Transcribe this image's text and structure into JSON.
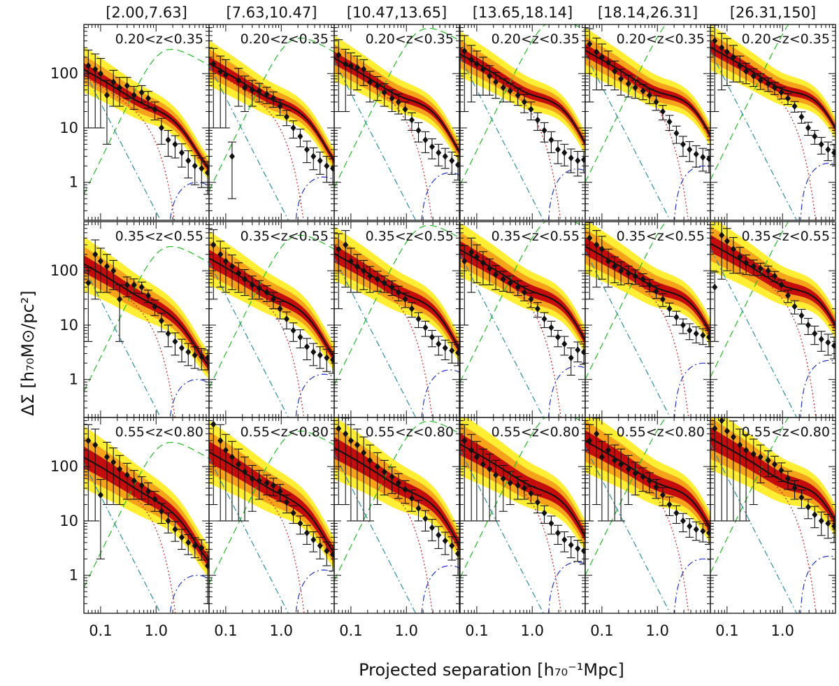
{
  "chart_data": {
    "type": "scatter",
    "figure_ylabel": "ΔΣ  [h₇₀M⊙/pc²]",
    "figure_xlabel": "Projected separation  [h₇₀⁻¹Mpc]",
    "column_labels": [
      "[2.00,7.63]",
      "[7.63,10.47]",
      "[10.47,13.65]",
      "[13.65,18.14]",
      "[18.14,26.31]",
      "[26.31,150]"
    ],
    "row_labels": [
      "0.20<z<0.35",
      "0.35<z<0.55",
      "0.55<z<0.80"
    ],
    "x_scale": "log",
    "y_scale": "log",
    "xlim": [
      0.05,
      9
    ],
    "ylim": [
      0.2,
      800
    ],
    "x_ticks": [
      0.1,
      1.0
    ],
    "x_tick_labels": [
      "0.1",
      "1.0"
    ],
    "y_ticks": [
      1,
      10,
      100
    ],
    "y_tick_labels": [
      "1",
      "10",
      "100"
    ],
    "x": [
      0.06,
      0.08,
      0.1,
      0.13,
      0.17,
      0.22,
      0.3,
      0.4,
      0.55,
      0.72,
      0.95,
      1.25,
      1.65,
      2.2,
      2.9,
      3.8,
      5.0,
      6.6,
      8.5
    ],
    "model_curves": [
      {
        "name": "total",
        "style": "solid black with red/orange/yellow confidence bands"
      },
      {
        "name": "1-halo",
        "style": "red dotted"
      },
      {
        "name": "2-halo",
        "style": "green dashed"
      },
      {
        "name": "stellar",
        "style": "teal dash-dot"
      },
      {
        "name": "miscentering",
        "style": "blue dash-dot"
      }
    ],
    "panels": [
      {
        "row": 0,
        "col": 0,
        "y": [
          140,
          120,
          100,
          40,
          70,
          55,
          60,
          40,
          45,
          35,
          22,
          10,
          6,
          5,
          3.5,
          2.5,
          2,
          1.8,
          1.5
        ],
        "err": [
          130,
          110,
          90,
          35,
          45,
          30,
          25,
          18,
          15,
          12,
          8,
          5,
          3,
          2.2,
          1.6,
          1.3,
          1.1,
          1.0,
          0.9
        ]
      },
      {
        "row": 0,
        "col": 1,
        "y": [
          150,
          110,
          95,
          3,
          75,
          55,
          50,
          48,
          42,
          35,
          25,
          16,
          10,
          7,
          4,
          3,
          2.5,
          2,
          1.8
        ],
        "err": [
          140,
          100,
          85,
          2.5,
          50,
          35,
          25,
          18,
          14,
          11,
          8,
          5,
          3.5,
          2.5,
          1.7,
          1.3,
          1.1,
          1.0,
          0.9
        ]
      },
      {
        "row": 0,
        "col": 2,
        "y": [
          220,
          150,
          140,
          130,
          120,
          70,
          60,
          45,
          35,
          30,
          22,
          14,
          9,
          6,
          4.5,
          3.5,
          3,
          2.5,
          2.1
        ],
        "err": [
          200,
          130,
          100,
          80,
          60,
          40,
          28,
          20,
          15,
          12,
          8,
          5,
          3.5,
          2.5,
          1.8,
          1.5,
          1.2,
          1.1,
          1.0
        ]
      },
      {
        "row": 0,
        "col": 3,
        "y": [
          260,
          180,
          150,
          120,
          90,
          70,
          55,
          48,
          40,
          30,
          22,
          14,
          9,
          6,
          4,
          3.5,
          2.8,
          2.5,
          2.6
        ],
        "err": [
          240,
          150,
          110,
          80,
          50,
          35,
          25,
          18,
          14,
          11,
          8,
          5,
          3.5,
          2.5,
          1.8,
          1.5,
          1.3,
          1.2,
          1.1
        ]
      },
      {
        "row": 0,
        "col": 4,
        "y": [
          350,
          250,
          200,
          160,
          110,
          80,
          65,
          55,
          48,
          40,
          30,
          20,
          13,
          8,
          5,
          4,
          3.3,
          2.9,
          2.7
        ],
        "err": [
          320,
          200,
          150,
          100,
          60,
          40,
          28,
          20,
          15,
          12,
          9,
          6,
          4,
          2.8,
          2,
          1.6,
          1.4,
          1.3,
          1.2
        ]
      },
      {
        "row": 0,
        "col": 5,
        "y": [
          400,
          300,
          250,
          200,
          140,
          110,
          90,
          75,
          65,
          55,
          45,
          35,
          25,
          16,
          10,
          7,
          5,
          4,
          3.5
        ],
        "err": [
          380,
          250,
          190,
          130,
          70,
          45,
          32,
          24,
          18,
          14,
          11,
          8,
          5.5,
          3.8,
          2.7,
          2,
          1.7,
          1.5,
          1.4
        ]
      },
      {
        "row": 1,
        "col": 0,
        "y": [
          60,
          200,
          150,
          120,
          100,
          30,
          55,
          55,
          50,
          35,
          22,
          12,
          7,
          5,
          3.8,
          3.2,
          2.8,
          2.6,
          2.5
        ],
        "err": [
          55,
          170,
          110,
          80,
          55,
          25,
          22,
          16,
          12,
          9,
          7,
          4.5,
          3,
          2.2,
          1.7,
          1.4,
          1.2,
          1.1,
          1.0
        ]
      },
      {
        "row": 1,
        "col": 1,
        "y": [
          300,
          200,
          150,
          120,
          90,
          70,
          55,
          48,
          40,
          30,
          20,
          13,
          8,
          6,
          4,
          3.2,
          2.8,
          2.5,
          2.3
        ],
        "err": [
          270,
          150,
          110,
          75,
          50,
          35,
          25,
          18,
          13,
          10,
          7,
          4.5,
          3,
          2.2,
          1.7,
          1.4,
          1.2,
          1.1,
          1.0
        ]
      },
      {
        "row": 1,
        "col": 2,
        "y": [
          250,
          300,
          150,
          120,
          100,
          80,
          70,
          60,
          50,
          40,
          30,
          20,
          13,
          9,
          6,
          4.5,
          3.8,
          3.4,
          3.1
        ],
        "err": [
          230,
          250,
          110,
          80,
          55,
          40,
          28,
          20,
          15,
          12,
          9,
          6,
          4,
          2.8,
          2,
          1.7,
          1.5,
          1.4,
          1.3
        ]
      },
      {
        "row": 1,
        "col": 3,
        "y": [
          150,
          220,
          180,
          140,
          110,
          85,
          70,
          60,
          50,
          40,
          30,
          20,
          13,
          9,
          6,
          4.5,
          2.5,
          3.5,
          3.2
        ],
        "err": [
          140,
          180,
          120,
          85,
          55,
          40,
          28,
          20,
          15,
          12,
          9,
          6,
          4,
          2.8,
          2,
          1.7,
          1.3,
          1.4,
          1.3
        ]
      },
      {
        "row": 1,
        "col": 4,
        "y": [
          400,
          300,
          250,
          150,
          120,
          100,
          90,
          80,
          70,
          55,
          42,
          30,
          20,
          14,
          10,
          8,
          7,
          6.5,
          6
        ],
        "err": [
          370,
          250,
          180,
          100,
          60,
          45,
          32,
          24,
          18,
          14,
          11,
          8,
          5.5,
          4,
          3,
          2.6,
          2.3,
          2.1,
          2.0
        ]
      },
      {
        "row": 1,
        "col": 5,
        "y": [
          50,
          450,
          350,
          250,
          180,
          140,
          120,
          110,
          100,
          80,
          55,
          35,
          22,
          15,
          10,
          7,
          5.5,
          4.8,
          4.2
        ],
        "err": [
          45,
          380,
          250,
          160,
          90,
          55,
          38,
          28,
          22,
          17,
          13,
          9,
          6,
          4.5,
          3.3,
          2.6,
          2.2,
          2.0,
          1.8
        ]
      },
      {
        "row": 2,
        "col": 0,
        "y": [
          300,
          250,
          30,
          150,
          120,
          90,
          70,
          55,
          45,
          35,
          25,
          15,
          10,
          7,
          5,
          4,
          3.5,
          3.2,
          1.5
        ],
        "err": [
          290,
          240,
          28,
          130,
          100,
          70,
          45,
          30,
          20,
          15,
          10,
          6,
          4,
          2.8,
          2,
          1.6,
          1.4,
          1.3,
          1.2
        ]
      },
      {
        "row": 2,
        "col": 1,
        "y": [
          600,
          300,
          200,
          150,
          110,
          80,
          60,
          55,
          50,
          45,
          35,
          22,
          14,
          9,
          6,
          4.5,
          3.5,
          2.8,
          2.4
        ],
        "err": [
          580,
          290,
          190,
          140,
          100,
          70,
          45,
          30,
          20,
          16,
          12,
          8,
          5,
          3.3,
          2.3,
          1.8,
          1.5,
          1.3,
          1.2
        ]
      },
      {
        "row": 2,
        "col": 2,
        "y": [
          500,
          400,
          300,
          250,
          180,
          130,
          100,
          80,
          65,
          50,
          38,
          26,
          17,
          11,
          7.5,
          5.5,
          4.3,
          3.5,
          2.5
        ],
        "err": [
          480,
          380,
          290,
          240,
          170,
          120,
          80,
          50,
          33,
          24,
          17,
          11,
          7,
          4.5,
          3.2,
          2.4,
          1.9,
          1.6,
          1.5
        ]
      },
      {
        "row": 2,
        "col": 3,
        "y": [
          300,
          200,
          150,
          110,
          90,
          70,
          60,
          50,
          45,
          40,
          32,
          22,
          14,
          9,
          6,
          4.5,
          3.6,
          3.1,
          2.8
        ],
        "err": [
          290,
          190,
          140,
          100,
          80,
          60,
          45,
          30,
          20,
          15,
          11,
          8,
          5,
          3.3,
          2.3,
          1.8,
          1.5,
          1.3,
          1.2
        ]
      },
      {
        "row": 2,
        "col": 4,
        "y": [
          300,
          400,
          150,
          200,
          130,
          110,
          90,
          75,
          65,
          55,
          42,
          30,
          20,
          14,
          10,
          8,
          7,
          6.5,
          6
        ],
        "err": [
          290,
          380,
          140,
          190,
          120,
          100,
          70,
          45,
          30,
          22,
          16,
          11,
          7.5,
          5,
          3.7,
          3,
          2.6,
          2.4,
          2.3
        ]
      },
      {
        "row": 2,
        "col": 5,
        "y": [
          500,
          700,
          450,
          350,
          250,
          200,
          170,
          150,
          130,
          110,
          85,
          60,
          40,
          27,
          18,
          13,
          10,
          9,
          8
        ],
        "err": [
          490,
          690,
          440,
          340,
          240,
          190,
          150,
          100,
          65,
          45,
          32,
          22,
          15,
          10,
          7,
          5.5,
          4.6,
          4.2,
          4.0
        ]
      }
    ]
  }
}
